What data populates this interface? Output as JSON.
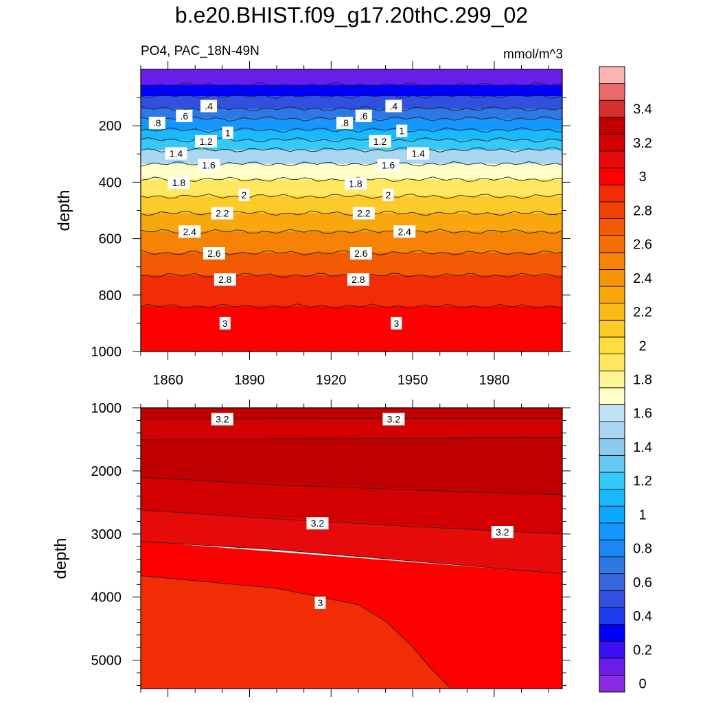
{
  "title": "b.e20.BHIST.f09_g17.20thC.299_02",
  "subtitle_left": "PO4, PAC_18N-49N",
  "subtitle_right": "mmol/m^3",
  "chart_data": [
    {
      "type": "contour",
      "panel": "upper",
      "ylabel": "depth",
      "xlim": [
        1850,
        2005
      ],
      "ylim": [
        1000,
        0
      ],
      "x_ticks": [
        1860,
        1890,
        1920,
        1950,
        1980
      ],
      "y_ticks": [
        200,
        400,
        600,
        800,
        1000
      ],
      "contour_depths_by_level": [
        {
          "level": 0.2,
          "depth": 55
        },
        {
          "level": 0.4,
          "depth": 95
        },
        {
          "level": 0.6,
          "depth": 140
        },
        {
          "level": 0.8,
          "depth": 175
        },
        {
          "level": 1.0,
          "depth": 215
        },
        {
          "level": 1.2,
          "depth": 250
        },
        {
          "level": 1.4,
          "depth": 285
        },
        {
          "level": 1.6,
          "depth": 335
        },
        {
          "level": 1.8,
          "depth": 390
        },
        {
          "level": 2.0,
          "depth": 450
        },
        {
          "level": 2.2,
          "depth": 510
        },
        {
          "level": 2.4,
          "depth": 575
        },
        {
          "level": 2.6,
          "depth": 650
        },
        {
          "level": 2.8,
          "depth": 730
        },
        {
          "level": 3.0,
          "depth": 840
        }
      ],
      "contour_labels": [
        {
          "text": ".4",
          "x": 1875,
          "y": 130
        },
        {
          "text": ".4",
          "x": 1943,
          "y": 130
        },
        {
          "text": ".6",
          "x": 1866,
          "y": 165
        },
        {
          "text": ".6",
          "x": 1932,
          "y": 165
        },
        {
          "text": ".8",
          "x": 1856,
          "y": 190
        },
        {
          "text": ".8",
          "x": 1925,
          "y": 190
        },
        {
          "text": "1",
          "x": 1882,
          "y": 225
        },
        {
          "text": "1",
          "x": 1946,
          "y": 218
        },
        {
          "text": "1.2",
          "x": 1874,
          "y": 255
        },
        {
          "text": "1.2",
          "x": 1938,
          "y": 255
        },
        {
          "text": "1.4",
          "x": 1863,
          "y": 298
        },
        {
          "text": "1.4",
          "x": 1952,
          "y": 298
        },
        {
          "text": "1.6",
          "x": 1875,
          "y": 340
        },
        {
          "text": "1.6",
          "x": 1941,
          "y": 340
        },
        {
          "text": "1.8",
          "x": 1864,
          "y": 402
        },
        {
          "text": "1.8",
          "x": 1929,
          "y": 405
        },
        {
          "text": "2",
          "x": 1888,
          "y": 445
        },
        {
          "text": "2",
          "x": 1941,
          "y": 445
        },
        {
          "text": "2.2",
          "x": 1880,
          "y": 510
        },
        {
          "text": "2.2",
          "x": 1932,
          "y": 510
        },
        {
          "text": "2.4",
          "x": 1868,
          "y": 575
        },
        {
          "text": "2.4",
          "x": 1947,
          "y": 575
        },
        {
          "text": "2.6",
          "x": 1877,
          "y": 652
        },
        {
          "text": "2.6",
          "x": 1931,
          "y": 652
        },
        {
          "text": "2.8",
          "x": 1881,
          "y": 745
        },
        {
          "text": "2.8",
          "x": 1930,
          "y": 745
        },
        {
          "text": "3",
          "x": 1881,
          "y": 900
        },
        {
          "text": "3",
          "x": 1944,
          "y": 900
        }
      ]
    },
    {
      "type": "contour",
      "panel": "lower",
      "ylabel": "depth",
      "xlim": [
        1850,
        2005
      ],
      "ylim": [
        5450,
        1000
      ],
      "y_ticks": [
        1000,
        2000,
        3000,
        4000,
        5000
      ],
      "regions": [
        {
          "value": 3.3,
          "top": [
            [
              1850,
              1000
            ],
            [
              2005,
              1000
            ]
          ],
          "bottom": [
            [
              1850,
              1180
            ],
            [
              1920,
              1170
            ],
            [
              2005,
              1170
            ]
          ]
        },
        {
          "value": 3.25,
          "top": [
            [
              1850,
              1180
            ],
            [
              2005,
              1170
            ]
          ],
          "bottom": [
            [
              1850,
              1500
            ],
            [
              1920,
              1490
            ],
            [
              2005,
              1470
            ]
          ]
        },
        {
          "value": 3.35,
          "top": [
            [
              1850,
              1500
            ],
            [
              2005,
              1470
            ]
          ],
          "bottom": [
            [
              1850,
              2100
            ],
            [
              1900,
              2220
            ],
            [
              1950,
              2300
            ],
            [
              2005,
              2380
            ]
          ]
        },
        {
          "value": 3.25,
          "top": [
            [
              1850,
              2100
            ],
            [
              2005,
              2380
            ]
          ],
          "bottom": [
            [
              1850,
              2620
            ],
            [
              1900,
              2760
            ],
            [
              1950,
              2880
            ],
            [
              2005,
              3000
            ]
          ]
        },
        {
          "value": 3.15,
          "top": [
            [
              1850,
              2620
            ],
            [
              2005,
              3000
            ]
          ],
          "bottom": [
            [
              1850,
              3120
            ],
            [
              1900,
              3250
            ],
            [
              1950,
              3430
            ],
            [
              2005,
              3630
            ]
          ]
        },
        {
          "value": 3.05,
          "top": [
            [
              1850,
              3120
            ],
            [
              2005,
              3630
            ]
          ],
          "bottom": [
            [
              1850,
              3660
            ],
            [
              1900,
              3860
            ],
            [
              1930,
              4120
            ],
            [
              1940,
              4380
            ],
            [
              1950,
              4790
            ],
            [
              1956,
              5100
            ],
            [
              1964,
              5450
            ],
            [
              2005,
              5450
            ]
          ]
        },
        {
          "value": 2.95,
          "top": [
            [
              1850,
              3660
            ],
            [
              1900,
              3860
            ],
            [
              1930,
              4120
            ],
            [
              1940,
              4380
            ],
            [
              1950,
              4790
            ],
            [
              1956,
              5100
            ],
            [
              1964,
              5450
            ]
          ],
          "bottom": [
            [
              1850,
              5450
            ],
            [
              1964,
              5450
            ]
          ]
        }
      ],
      "contour_labels": [
        {
          "text": "3.2",
          "x": 1880,
          "y": 1180
        },
        {
          "text": "3.2",
          "x": 1943,
          "y": 1180
        },
        {
          "text": "3.2",
          "x": 1915,
          "y": 2830
        },
        {
          "text": "3.2",
          "x": 1983,
          "y": 2970
        },
        {
          "text": "3",
          "x": 1916,
          "y": 4090
        }
      ]
    }
  ],
  "colorbar": {
    "tick_labels": [
      "0",
      "0.2",
      "0.4",
      "0.6",
      "0.8",
      "1",
      "1.2",
      "1.4",
      "1.6",
      "1.8",
      "2",
      "2.2",
      "2.4",
      "2.6",
      "2.8",
      "3",
      "3.2",
      "3.4"
    ],
    "levels": [
      0,
      0.1,
      0.2,
      0.3,
      0.4,
      0.5,
      0.6,
      0.7,
      0.8,
      0.9,
      1.0,
      1.1,
      1.2,
      1.3,
      1.4,
      1.5,
      1.6,
      1.7,
      1.8,
      1.9,
      2.0,
      2.1,
      2.2,
      2.3,
      2.4,
      2.5,
      2.6,
      2.7,
      2.8,
      2.9,
      3.0,
      3.1,
      3.2,
      3.3,
      3.4,
      3.5,
      3.6
    ],
    "colors": [
      "#8a2be2",
      "#6a1de8",
      "#3a10f0",
      "#0000ff",
      "#1f3cf0",
      "#3050e0",
      "#3a66dd",
      "#2e78e6",
      "#1c86f2",
      "#1596ff",
      "#0ca8ff",
      "#18bafc",
      "#36c8f6",
      "#64c8f2",
      "#8ccaf0",
      "#aad6f2",
      "#bfe2f4",
      "#ffffc8",
      "#fff596",
      "#ffe860",
      "#fede3c",
      "#fdcb28",
      "#fbba16",
      "#f8a80c",
      "#f79508",
      "#f68206",
      "#f46e04",
      "#f25a04",
      "#ef4404",
      "#f22c04",
      "#ff0000",
      "#e60a0a",
      "#d20000",
      "#c00000",
      "#d63030",
      "#e86a6a",
      "#fcb4b4"
    ]
  }
}
